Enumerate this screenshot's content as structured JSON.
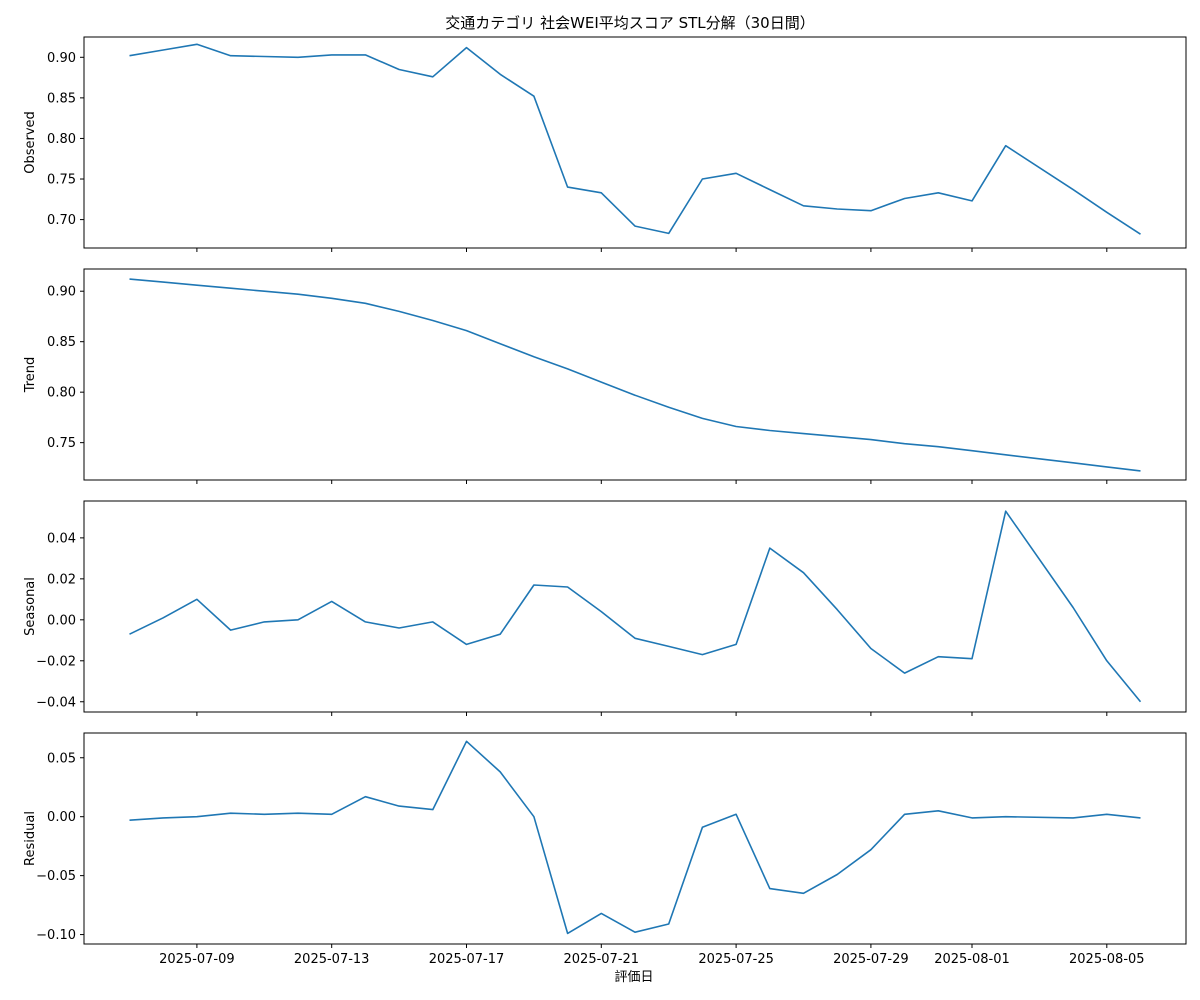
{
  "chart_data": {
    "type": "line",
    "title": "交通カテゴリ 社会WEI平均スコア STL分解（30日間）",
    "xlabel": "評価日",
    "dates": [
      "2025-07-07",
      "2025-07-08",
      "2025-07-09",
      "2025-07-10",
      "2025-07-11",
      "2025-07-12",
      "2025-07-13",
      "2025-07-14",
      "2025-07-15",
      "2025-07-16",
      "2025-07-17",
      "2025-07-18",
      "2025-07-19",
      "2025-07-20",
      "2025-07-21",
      "2025-07-22",
      "2025-07-23",
      "2025-07-24",
      "2025-07-25",
      "2025-07-26",
      "2025-07-27",
      "2025-07-28",
      "2025-07-29",
      "2025-07-30",
      "2025-07-31",
      "2025-08-01",
      "2025-08-02",
      "2025-08-04",
      "2025-08-05",
      "2025-08-06"
    ],
    "x_ticks": [
      "2025-07-09",
      "2025-07-13",
      "2025-07-17",
      "2025-07-21",
      "2025-07-25",
      "2025-07-29",
      "2025-08-01",
      "2025-08-05"
    ],
    "panels": [
      {
        "ylabel": "Observed",
        "ylim": [
          0.665,
          0.925
        ],
        "yticks": [
          0.7,
          0.75,
          0.8,
          0.85,
          0.9
        ],
        "ytick_labels": [
          "0.70",
          "0.75",
          "0.80",
          "0.85",
          "0.90"
        ],
        "values": [
          0.902,
          0.909,
          0.916,
          0.902,
          0.901,
          0.9,
          0.903,
          0.903,
          0.885,
          0.876,
          0.912,
          0.879,
          0.852,
          0.74,
          0.733,
          0.692,
          0.683,
          0.75,
          0.757,
          0.737,
          0.717,
          0.713,
          0.711,
          0.726,
          0.733,
          0.723,
          0.791,
          0.737,
          0.709,
          0.682
        ]
      },
      {
        "ylabel": "Trend",
        "ylim": [
          0.713,
          0.922
        ],
        "yticks": [
          0.75,
          0.8,
          0.85,
          0.9
        ],
        "ytick_labels": [
          "0.75",
          "0.80",
          "0.85",
          "0.90"
        ],
        "values": [
          0.912,
          0.909,
          0.906,
          0.903,
          0.9,
          0.897,
          0.893,
          0.888,
          0.88,
          0.871,
          0.861,
          0.848,
          0.835,
          0.823,
          0.81,
          0.797,
          0.785,
          0.774,
          0.766,
          0.762,
          0.759,
          0.756,
          0.753,
          0.749,
          0.746,
          0.742,
          0.738,
          0.73,
          0.726,
          0.722
        ]
      },
      {
        "ylabel": "Seasonal",
        "ylim": [
          -0.045,
          0.058
        ],
        "yticks": [
          -0.04,
          -0.02,
          0.0,
          0.02,
          0.04
        ],
        "ytick_labels": [
          "−0.04",
          "−0.02",
          "0.00",
          "0.02",
          "0.04"
        ],
        "values": [
          -0.007,
          0.001,
          0.01,
          -0.005,
          -0.001,
          0.0,
          0.009,
          -0.001,
          -0.004,
          -0.001,
          -0.012,
          -0.007,
          0.017,
          0.016,
          0.004,
          -0.009,
          -0.013,
          -0.017,
          -0.012,
          0.035,
          0.023,
          0.005,
          -0.014,
          -0.026,
          -0.018,
          -0.019,
          0.053,
          0.006,
          -0.02,
          -0.04
        ]
      },
      {
        "ylabel": "Residual",
        "ylim": [
          -0.108,
          0.071
        ],
        "yticks": [
          -0.1,
          -0.05,
          0.0,
          0.05
        ],
        "ytick_labels": [
          "−0.10",
          "−0.05",
          "0.00",
          "0.05"
        ],
        "values": [
          -0.003,
          -0.001,
          0.0,
          0.003,
          0.002,
          0.003,
          0.002,
          0.017,
          0.009,
          0.006,
          0.064,
          0.038,
          0.0,
          -0.099,
          -0.082,
          -0.098,
          -0.091,
          -0.009,
          0.002,
          -0.061,
          -0.065,
          -0.049,
          -0.028,
          0.002,
          0.005,
          -0.001,
          0.0,
          -0.001,
          0.002,
          -0.001
        ]
      }
    ]
  }
}
